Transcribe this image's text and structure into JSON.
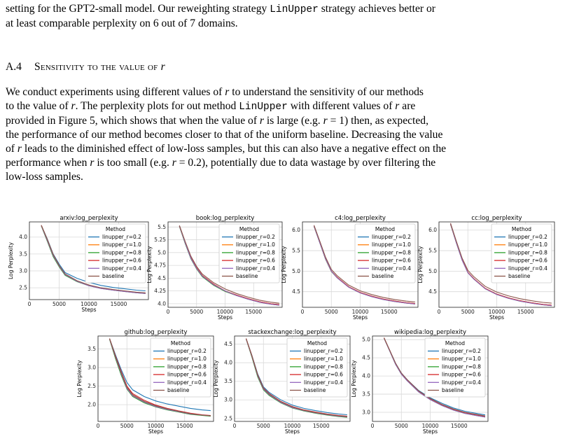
{
  "intro": {
    "line1": "setting for the GPT2-small model. Our reweighting strategy ",
    "method": "LinUpper",
    "line1b": " strategy achieves better or",
    "line2": "at least comparable perplexity on 6 out of 7 domains."
  },
  "section": {
    "number": "A.4",
    "title_pre": "Sensitivity to the value of ",
    "title_var": "r"
  },
  "body": {
    "l1a": "We conduct experiments using different values of ",
    "l1b": " to understand the sensitivity of our methods",
    "l2a": "to the value of ",
    "l2b": ". The perplexity plots for out method ",
    "l2c": " with different values of ",
    "l2d": " are",
    "l3a": "provided in Figure 5, which shows that when the value of ",
    "l3b": " is large (e.g. ",
    "l3c": " = 1) then, as expected,",
    "l4": "the performance of our method becomes closer to that of the uniform baseline. Decreasing the value",
    "l5a": "of ",
    "l5b": " leads to the diminished effect of low-loss samples, but this can also have a negative effect on the",
    "l6a": "performance when ",
    "l6b": " is too small (e.g. ",
    "l6c": " = 0.2), potentially due to data wastage by over filtering the",
    "l7": "low-loss samples.",
    "var": "r",
    "method": "LinUpper"
  },
  "legend": {
    "title": "Method",
    "entries": [
      "linupper_r=0.2",
      "linupper_r=1.0",
      "linupper_r=0.8",
      "linupper_r=0.6",
      "linupper_r=0.4",
      "baseline"
    ],
    "colors": [
      "#1f77b4",
      "#ff7f0e",
      "#2ca02c",
      "#d62728",
      "#9467bd",
      "#8c564b"
    ]
  },
  "chart_data": [
    {
      "type": "line",
      "title": "arxiv:log_perplexity",
      "xlabel": "Steps",
      "ylabel": "Log Perplexity",
      "xlim": [
        0,
        20000
      ],
      "ylim": [
        2.15,
        4.45
      ],
      "xticks": [
        0,
        5000,
        10000,
        15000
      ],
      "yticks": [
        2.5,
        3.0,
        3.5,
        4.0
      ],
      "grid": true,
      "legend": "top-right",
      "x": [
        2000,
        3000,
        4000,
        5000,
        6000,
        8000,
        10000,
        12000,
        14000,
        16000,
        18000,
        19500
      ],
      "series": [
        {
          "name": "linupper_r=0.2",
          "values": [
            4.35,
            3.95,
            3.5,
            3.2,
            2.95,
            2.78,
            2.66,
            2.57,
            2.51,
            2.47,
            2.43,
            2.41
          ]
        },
        {
          "name": "linupper_r=1.0",
          "values": [
            4.35,
            3.93,
            3.48,
            3.16,
            2.9,
            2.7,
            2.57,
            2.49,
            2.44,
            2.4,
            2.36,
            2.34
          ]
        },
        {
          "name": "linupper_r=0.8",
          "values": [
            4.33,
            3.88,
            3.42,
            3.12,
            2.87,
            2.68,
            2.56,
            2.48,
            2.43,
            2.39,
            2.35,
            2.33
          ]
        },
        {
          "name": "linupper_r=0.6",
          "values": [
            4.35,
            3.92,
            3.47,
            3.15,
            2.9,
            2.7,
            2.57,
            2.49,
            2.44,
            2.4,
            2.36,
            2.34
          ]
        },
        {
          "name": "linupper_r=0.4",
          "values": [
            4.34,
            3.9,
            3.45,
            3.14,
            2.89,
            2.69,
            2.56,
            2.48,
            2.43,
            2.39,
            2.35,
            2.33
          ]
        },
        {
          "name": "baseline",
          "values": [
            4.35,
            3.93,
            3.48,
            3.16,
            2.91,
            2.71,
            2.58,
            2.5,
            2.45,
            2.41,
            2.37,
            2.35
          ]
        }
      ]
    },
    {
      "type": "line",
      "title": "book:log_perplexity",
      "xlabel": "Steps",
      "ylabel": "Log Perplexity",
      "xlim": [
        0,
        20000
      ],
      "ylim": [
        3.93,
        5.6
      ],
      "xticks": [
        0,
        5000,
        10000,
        15000
      ],
      "yticks": [
        4.0,
        4.25,
        4.5,
        4.75,
        5.0,
        5.25,
        5.5
      ],
      "grid": true,
      "legend": "top-right",
      "x": [
        2000,
        3000,
        4000,
        5000,
        6000,
        8000,
        10000,
        12000,
        14000,
        16000,
        18000,
        19500
      ],
      "series": [
        {
          "name": "linupper_r=0.2",
          "values": [
            5.52,
            5.2,
            4.9,
            4.7,
            4.55,
            4.38,
            4.25,
            4.17,
            4.1,
            4.04,
            4.0,
            3.98
          ]
        },
        {
          "name": "linupper_r=1.0",
          "values": [
            5.52,
            5.2,
            4.9,
            4.7,
            4.55,
            4.38,
            4.25,
            4.17,
            4.1,
            4.04,
            4.0,
            3.98
          ]
        },
        {
          "name": "linupper_r=0.8",
          "values": [
            5.51,
            5.18,
            4.88,
            4.68,
            4.53,
            4.36,
            4.24,
            4.16,
            4.09,
            4.03,
            3.99,
            3.97
          ]
        },
        {
          "name": "linupper_r=0.6",
          "values": [
            5.52,
            5.2,
            4.9,
            4.7,
            4.55,
            4.38,
            4.25,
            4.17,
            4.1,
            4.04,
            4.0,
            3.98
          ]
        },
        {
          "name": "linupper_r=0.4",
          "values": [
            5.52,
            5.19,
            4.89,
            4.69,
            4.54,
            4.37,
            4.25,
            4.16,
            4.09,
            4.03,
            3.99,
            3.97
          ]
        },
        {
          "name": "baseline",
          "values": [
            5.53,
            5.22,
            4.93,
            4.73,
            4.58,
            4.41,
            4.29,
            4.2,
            4.13,
            4.07,
            4.03,
            4.01
          ]
        }
      ]
    },
    {
      "type": "line",
      "title": "c4:log_perplexity",
      "xlabel": "Steps",
      "ylabel": "Log Perplexity",
      "xlim": [
        0,
        20000
      ],
      "ylim": [
        4.12,
        6.2
      ],
      "xticks": [
        0,
        5000,
        10000,
        15000
      ],
      "yticks": [
        4.5,
        5.0,
        5.5,
        6.0
      ],
      "grid": true,
      "legend": "top-right",
      "x": [
        2000,
        3000,
        4000,
        5000,
        6000,
        8000,
        10000,
        12000,
        14000,
        16000,
        18000,
        19500
      ],
      "series": [
        {
          "name": "linupper_r=0.2",
          "values": [
            6.1,
            5.7,
            5.3,
            5.0,
            4.85,
            4.62,
            4.48,
            4.39,
            4.32,
            4.27,
            4.23,
            4.21
          ]
        },
        {
          "name": "linupper_r=1.0",
          "values": [
            6.1,
            5.7,
            5.3,
            5.0,
            4.85,
            4.62,
            4.48,
            4.39,
            4.32,
            4.27,
            4.23,
            4.21
          ]
        },
        {
          "name": "linupper_r=0.8",
          "values": [
            6.09,
            5.69,
            5.29,
            4.99,
            4.84,
            4.61,
            4.47,
            4.38,
            4.31,
            4.26,
            4.22,
            4.2
          ]
        },
        {
          "name": "linupper_r=0.6",
          "values": [
            6.1,
            5.7,
            5.3,
            5.0,
            4.85,
            4.62,
            4.48,
            4.39,
            4.32,
            4.27,
            4.23,
            4.21
          ]
        },
        {
          "name": "linupper_r=0.4",
          "values": [
            6.1,
            5.69,
            5.3,
            5.0,
            4.84,
            4.61,
            4.47,
            4.38,
            4.31,
            4.26,
            4.22,
            4.2
          ]
        },
        {
          "name": "baseline",
          "values": [
            6.12,
            5.73,
            5.34,
            5.04,
            4.89,
            4.66,
            4.52,
            4.43,
            4.36,
            4.31,
            4.27,
            4.25
          ]
        }
      ]
    },
    {
      "type": "line",
      "title": "cc:log_perplexity",
      "xlabel": "Steps",
      "ylabel": "Log Perplexity",
      "xlim": [
        0,
        20000
      ],
      "ylim": [
        4.12,
        6.2
      ],
      "xticks": [
        0,
        5000,
        10000,
        15000
      ],
      "yticks": [
        4.5,
        5.0,
        5.5,
        6.0
      ],
      "grid": true,
      "legend": "top-right",
      "x": [
        2000,
        3000,
        4000,
        5000,
        6000,
        8000,
        10000,
        12000,
        14000,
        16000,
        18000,
        19500
      ],
      "series": [
        {
          "name": "linupper_r=0.2",
          "values": [
            6.15,
            5.7,
            5.28,
            4.97,
            4.82,
            4.58,
            4.44,
            4.35,
            4.28,
            4.23,
            4.19,
            4.17
          ]
        },
        {
          "name": "linupper_r=1.0",
          "values": [
            6.15,
            5.7,
            5.28,
            4.97,
            4.82,
            4.58,
            4.44,
            4.35,
            4.28,
            4.23,
            4.19,
            4.17
          ]
        },
        {
          "name": "linupper_r=0.8",
          "values": [
            6.14,
            5.69,
            5.27,
            4.96,
            4.81,
            4.57,
            4.43,
            4.34,
            4.27,
            4.22,
            4.18,
            4.16
          ]
        },
        {
          "name": "linupper_r=0.6",
          "values": [
            6.15,
            5.7,
            5.28,
            4.97,
            4.82,
            4.58,
            4.44,
            4.35,
            4.28,
            4.23,
            4.19,
            4.17
          ]
        },
        {
          "name": "linupper_r=0.4",
          "values": [
            6.15,
            5.69,
            5.27,
            4.96,
            4.81,
            4.57,
            4.43,
            4.34,
            4.27,
            4.22,
            4.18,
            4.16
          ]
        },
        {
          "name": "baseline",
          "values": [
            6.17,
            5.73,
            5.32,
            5.02,
            4.87,
            4.63,
            4.49,
            4.4,
            4.33,
            4.28,
            4.24,
            4.22
          ]
        }
      ]
    },
    {
      "type": "line",
      "title": "github:log_perplexity",
      "xlabel": "Steps",
      "ylabel": "Log Perplexity",
      "xlim": [
        0,
        20000
      ],
      "ylim": [
        1.55,
        3.85
      ],
      "xticks": [
        0,
        5000,
        10000,
        15000
      ],
      "yticks": [
        2.0,
        2.5,
        3.0,
        3.5
      ],
      "grid": true,
      "legend": "top-right",
      "x": [
        2000,
        3000,
        4000,
        5000,
        6000,
        8000,
        10000,
        12000,
        14000,
        16000,
        18000,
        19500
      ],
      "series": [
        {
          "name": "linupper_r=0.2",
          "values": [
            3.78,
            3.35,
            2.95,
            2.6,
            2.4,
            2.22,
            2.1,
            2.02,
            1.96,
            1.9,
            1.86,
            1.84
          ]
        },
        {
          "name": "linupper_r=1.0",
          "values": [
            3.78,
            3.3,
            2.85,
            2.45,
            2.25,
            2.08,
            1.96,
            1.88,
            1.82,
            1.76,
            1.72,
            1.7
          ]
        },
        {
          "name": "linupper_r=0.8",
          "values": [
            3.76,
            3.25,
            2.8,
            2.42,
            2.22,
            2.05,
            1.94,
            1.86,
            1.8,
            1.74,
            1.71,
            1.69
          ]
        },
        {
          "name": "linupper_r=0.6",
          "values": [
            3.78,
            3.32,
            2.9,
            2.5,
            2.3,
            2.12,
            1.99,
            1.9,
            1.83,
            1.77,
            1.73,
            1.71
          ]
        },
        {
          "name": "linupper_r=0.4",
          "values": [
            3.77,
            3.28,
            2.84,
            2.44,
            2.24,
            2.07,
            1.95,
            1.87,
            1.81,
            1.75,
            1.72,
            1.7
          ]
        },
        {
          "name": "baseline",
          "values": [
            3.78,
            3.3,
            2.87,
            2.47,
            2.27,
            2.09,
            1.97,
            1.89,
            1.82,
            1.76,
            1.72,
            1.7
          ]
        }
      ]
    },
    {
      "type": "line",
      "title": "stackexchange:log_perplexity",
      "xlabel": "Steps",
      "ylabel": "Log Perplexity",
      "xlim": [
        0,
        20000
      ],
      "ylim": [
        2.42,
        4.72
      ],
      "xticks": [
        0,
        5000,
        10000,
        15000
      ],
      "yticks": [
        2.5,
        3.0,
        3.5,
        4.0,
        4.5
      ],
      "grid": true,
      "legend": "top-right",
      "x": [
        2000,
        3000,
        4000,
        5000,
        6000,
        8000,
        10000,
        12000,
        14000,
        16000,
        18000,
        19500
      ],
      "series": [
        {
          "name": "linupper_r=0.2",
          "values": [
            4.65,
            4.2,
            3.7,
            3.35,
            3.2,
            3.0,
            2.86,
            2.77,
            2.71,
            2.66,
            2.62,
            2.6
          ]
        },
        {
          "name": "linupper_r=1.0",
          "values": [
            4.65,
            4.18,
            3.66,
            3.3,
            3.15,
            2.95,
            2.81,
            2.72,
            2.66,
            2.61,
            2.57,
            2.55
          ]
        },
        {
          "name": "linupper_r=0.8",
          "values": [
            4.64,
            4.15,
            3.62,
            3.27,
            3.12,
            2.92,
            2.78,
            2.7,
            2.64,
            2.59,
            2.55,
            2.53
          ]
        },
        {
          "name": "linupper_r=0.6",
          "values": [
            4.65,
            4.19,
            3.68,
            3.32,
            3.17,
            2.96,
            2.82,
            2.73,
            2.67,
            2.62,
            2.58,
            2.56
          ]
        },
        {
          "name": "linupper_r=0.4",
          "values": [
            4.64,
            4.17,
            3.65,
            3.29,
            3.14,
            2.93,
            2.79,
            2.71,
            2.65,
            2.6,
            2.56,
            2.54
          ]
        },
        {
          "name": "baseline",
          "values": [
            4.65,
            4.18,
            3.67,
            3.31,
            3.16,
            2.95,
            2.81,
            2.72,
            2.66,
            2.61,
            2.57,
            2.55
          ]
        }
      ]
    },
    {
      "type": "line",
      "title": "wikipedia:log_perplexity",
      "xlabel": "Steps",
      "ylabel": "Log Perplexity",
      "xlim": [
        0,
        20000
      ],
      "ylim": [
        2.75,
        5.1
      ],
      "xticks": [
        0,
        5000,
        10000,
        15000
      ],
      "yticks": [
        3.0,
        3.5,
        4.0,
        4.5,
        5.0
      ],
      "grid": true,
      "legend": "top-right",
      "x": [
        2000,
        3000,
        4000,
        5000,
        6000,
        8000,
        10000,
        12000,
        14000,
        16000,
        18000,
        19500
      ],
      "series": [
        {
          "name": "linupper_r=0.2",
          "values": [
            5.05,
            4.7,
            4.35,
            4.08,
            3.9,
            3.6,
            3.4,
            3.25,
            3.12,
            3.03,
            2.97,
            2.93
          ]
        },
        {
          "name": "linupper_r=1.0",
          "values": [
            5.05,
            4.69,
            4.33,
            4.06,
            3.88,
            3.57,
            3.36,
            3.2,
            3.07,
            2.98,
            2.92,
            2.88
          ]
        },
        {
          "name": "linupper_r=0.8",
          "values": [
            5.04,
            4.68,
            4.32,
            4.05,
            3.87,
            3.56,
            3.35,
            3.19,
            3.06,
            2.97,
            2.91,
            2.87
          ]
        },
        {
          "name": "linupper_r=0.6",
          "values": [
            5.05,
            4.7,
            4.34,
            4.07,
            3.89,
            3.58,
            3.37,
            3.21,
            3.08,
            2.99,
            2.93,
            2.89
          ]
        },
        {
          "name": "linupper_r=0.4",
          "values": [
            5.04,
            4.68,
            4.32,
            4.05,
            3.87,
            3.56,
            3.35,
            3.19,
            3.06,
            2.97,
            2.91,
            2.87
          ]
        },
        {
          "name": "baseline",
          "values": [
            5.05,
            4.7,
            4.35,
            4.08,
            3.9,
            3.59,
            3.38,
            3.22,
            3.09,
            3.0,
            2.94,
            2.9
          ]
        }
      ]
    }
  ]
}
